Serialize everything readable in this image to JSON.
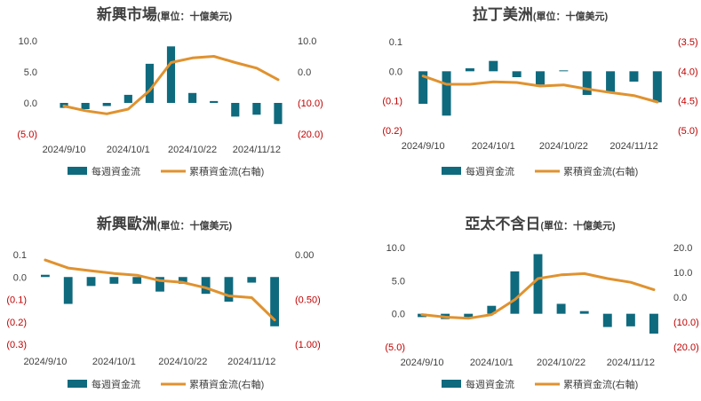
{
  "colors": {
    "bar": "#0f6a7e",
    "line": "#e0922f",
    "neg_label": "#c00000",
    "axis_text": "#404040",
    "title_text": "#404040"
  },
  "chart_data": [
    {
      "type": "bar",
      "title": "新興市場",
      "title_unit": "(單位：十億美元)",
      "x_tick_labels": [
        "2024/9/10",
        "2024/10/1",
        "2024/10/22",
        "2024/11/12"
      ],
      "left_axis": {
        "ylim": [
          -5,
          10
        ],
        "ticks": [
          10,
          5,
          0,
          -5
        ],
        "tick_labels": [
          "10.0",
          "5.0",
          "0.0",
          "(5.0)"
        ]
      },
      "right_axis": {
        "ylim": [
          -20,
          10
        ],
        "ticks": [
          10,
          0,
          -10,
          -20
        ],
        "tick_labels": [
          "10.0",
          "0.0",
          "(10.0)",
          "(20.0)"
        ]
      },
      "legend": [
        "每週資金流",
        "累積資金流(右軸)"
      ],
      "series": [
        {
          "type": "bar",
          "axis": "left",
          "values": [
            -0.8,
            -1.0,
            -0.5,
            1.3,
            6.3,
            9.1,
            1.6,
            0.3,
            -2.2,
            -1.9,
            -3.4
          ]
        },
        {
          "type": "line",
          "axis": "right",
          "values": [
            -11,
            -12.5,
            -13.5,
            -12,
            -6,
            3,
            4.5,
            5,
            3,
            1.2,
            -2.5
          ]
        }
      ]
    },
    {
      "type": "bar",
      "title": "拉丁美洲",
      "title_unit": "(單位：十億美元)",
      "x_tick_labels": [
        "2024/9/10",
        "2024/10/1",
        "2024/10/22",
        "2024/11/12"
      ],
      "left_axis": {
        "ylim": [
          -0.2,
          0.1
        ],
        "ticks": [
          0.1,
          0,
          -0.1,
          -0.2
        ],
        "tick_labels": [
          "0.1",
          "0.0",
          "(0.1)",
          "(0.2)"
        ]
      },
      "right_axis": {
        "ylim": [
          -5,
          -3.5
        ],
        "ticks": [
          -3.5,
          -4,
          -4.5,
          -5
        ],
        "tick_labels": [
          "(3.5)",
          "(4.0)",
          "(4.5)",
          "(5.0)"
        ]
      },
      "legend": [
        "每週資金流",
        "累積資金流(右軸)"
      ],
      "series": [
        {
          "type": "bar",
          "axis": "left",
          "values": [
            -0.11,
            -0.15,
            0.01,
            0.035,
            -0.02,
            -0.045,
            0.003,
            -0.08,
            -0.07,
            -0.035,
            -0.105
          ]
        },
        {
          "type": "line",
          "axis": "right",
          "values": [
            -4.08,
            -4.22,
            -4.22,
            -4.18,
            -4.19,
            -4.25,
            -4.23,
            -4.3,
            -4.36,
            -4.41,
            -4.52
          ]
        }
      ]
    },
    {
      "type": "bar",
      "title": "新興歐洲",
      "title_unit": "(單位：十億美元)",
      "x_tick_labels": [
        "2024/9/10",
        "2024/10/1",
        "2024/10/22",
        "2024/11/12"
      ],
      "left_axis": {
        "ylim": [
          -0.3,
          0.1
        ],
        "ticks": [
          0.1,
          0,
          -0.1,
          -0.2,
          -0.3
        ],
        "tick_labels": [
          "0.1",
          "0.0",
          "(0.1)",
          "(0.2)",
          "(0.3)"
        ]
      },
      "right_axis": {
        "ylim": [
          -1,
          0
        ],
        "ticks": [
          0,
          -0.5,
          -1
        ],
        "tick_labels": [
          "0.00",
          "(0.50)",
          "(1.00)"
        ]
      },
      "legend": [
        "每週資金流",
        "累積資金流(右軸)"
      ],
      "series": [
        {
          "type": "bar",
          "axis": "left",
          "values": [
            0.01,
            -0.12,
            -0.04,
            -0.03,
            -0.03,
            -0.065,
            -0.03,
            -0.075,
            -0.11,
            -0.025,
            -0.22
          ]
        },
        {
          "type": "line",
          "axis": "right",
          "values": [
            -0.06,
            -0.15,
            -0.18,
            -0.21,
            -0.23,
            -0.29,
            -0.31,
            -0.37,
            -0.46,
            -0.48,
            -0.73
          ]
        }
      ]
    },
    {
      "type": "bar",
      "title": "亞太不含日",
      "title_unit": "(單位：十億美元)",
      "x_tick_labels": [
        "2024/9/10",
        "2024/10/1",
        "2024/10/22",
        "2024/11/12"
      ],
      "left_axis": {
        "ylim": [
          -5,
          10
        ],
        "ticks": [
          10,
          5,
          0,
          -5
        ],
        "tick_labels": [
          "10.0",
          "5.0",
          "0.0",
          "(5.0)"
        ]
      },
      "right_axis": {
        "ylim": [
          -20,
          20
        ],
        "ticks": [
          20,
          10,
          0,
          -10,
          -20
        ],
        "tick_labels": [
          "20.0",
          "10.0",
          "0.0",
          "(10.0)",
          "(20.0)"
        ]
      },
      "legend": [
        "每週資金流",
        "累積資金流(右軸)"
      ],
      "series": [
        {
          "type": "bar",
          "axis": "left",
          "values": [
            -0.5,
            -0.8,
            -0.7,
            1.2,
            6.4,
            9.0,
            1.5,
            0.4,
            -2.0,
            -1.9,
            -3.0
          ]
        },
        {
          "type": "line",
          "axis": "right",
          "values": [
            -7,
            -8,
            -8.5,
            -7,
            -1,
            7.5,
            9,
            9.5,
            7.5,
            6,
            3
          ]
        }
      ]
    }
  ]
}
